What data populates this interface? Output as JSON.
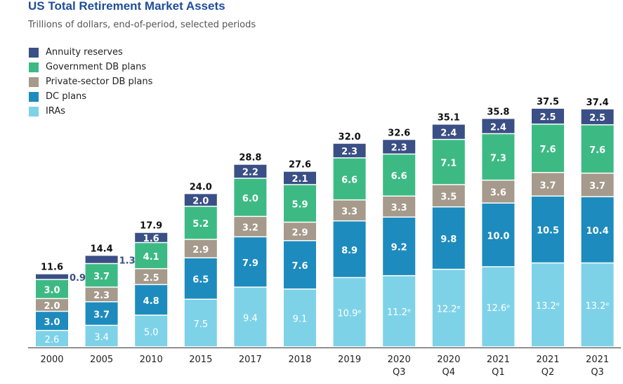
{
  "title": "US Total Retirement Market Assets",
  "subtitle": "Trillions of dollars, end-of-period, selected periods",
  "colors": {
    "annuity": "#3a4f85",
    "govdb": "#3dba84",
    "privdb": "#a59a8b",
    "dc": "#1d8bbd",
    "ira": "#7ed2e8",
    "total_text": "#111111",
    "axis": "#333333"
  },
  "legend": [
    {
      "label": "Annuity reserves",
      "key": "annuity"
    },
    {
      "label": "Government DB plans",
      "key": "govdb"
    },
    {
      "label": "Private-sector DB plans",
      "key": "privdb"
    },
    {
      "label": "DC plans",
      "key": "dc"
    },
    {
      "label": "IRAs",
      "key": "ira"
    }
  ],
  "chart_data": {
    "type": "bar",
    "stacked": true,
    "categories": [
      "2000",
      "2005",
      "2010",
      "2015",
      "2017",
      "2018",
      "2019",
      "2020 Q3",
      "2020 Q4",
      "2021 Q1",
      "2021 Q2",
      "2021 Q3"
    ],
    "category_lines": [
      [
        "2000"
      ],
      [
        "2005"
      ],
      [
        "2010"
      ],
      [
        "2015"
      ],
      [
        "2017"
      ],
      [
        "2018"
      ],
      [
        "2019"
      ],
      [
        "2020",
        "Q3"
      ],
      [
        "2020",
        "Q4"
      ],
      [
        "2021",
        "Q1"
      ],
      [
        "2021",
        "Q2"
      ],
      [
        "2021",
        "Q3"
      ]
    ],
    "series": [
      {
        "name": "IRAs",
        "key": "ira",
        "values": [
          2.6,
          3.4,
          5.0,
          7.5,
          9.4,
          9.1,
          10.9,
          11.2,
          12.2,
          12.6,
          13.2,
          13.2
        ],
        "labels": [
          "2.6",
          "3.4",
          "5.0",
          "7.5",
          "9.4",
          "9.1",
          "10.9ᵉ",
          "11.2ᵉ",
          "12.2ᵉ",
          "12.6ᵉ",
          "13.2ᵉ",
          "13.2ᵉ"
        ]
      },
      {
        "name": "DC plans",
        "key": "dc",
        "values": [
          3.0,
          3.7,
          4.8,
          6.5,
          7.9,
          7.6,
          8.9,
          9.2,
          9.8,
          10.0,
          10.5,
          10.4
        ],
        "labels": [
          "3.0",
          "3.7",
          "4.8",
          "6.5",
          "7.9",
          "7.6",
          "8.9",
          "9.2",
          "9.8",
          "10.0",
          "10.5",
          "10.4"
        ]
      },
      {
        "name": "Private-sector DB plans",
        "key": "privdb",
        "values": [
          2.0,
          2.3,
          2.5,
          2.9,
          3.2,
          2.9,
          3.3,
          3.3,
          3.5,
          3.6,
          3.7,
          3.7
        ],
        "labels": [
          "2.0",
          "2.3",
          "2.5",
          "2.9",
          "3.2",
          "2.9",
          "3.3",
          "3.3",
          "3.5",
          "3.6",
          "3.7",
          "3.7"
        ]
      },
      {
        "name": "Government DB plans",
        "key": "govdb",
        "values": [
          3.0,
          3.7,
          4.1,
          5.2,
          6.0,
          5.9,
          6.6,
          6.6,
          7.1,
          7.3,
          7.6,
          7.6
        ],
        "labels": [
          "3.0",
          "3.7",
          "4.1",
          "5.2",
          "6.0",
          "5.9",
          "6.6",
          "6.6",
          "7.1",
          "7.3",
          "7.6",
          "7.6"
        ]
      },
      {
        "name": "Annuity reserves",
        "key": "annuity",
        "values": [
          0.9,
          1.3,
          1.6,
          2.0,
          2.2,
          2.1,
          2.3,
          2.3,
          2.4,
          2.4,
          2.5,
          2.5
        ],
        "labels": [
          "0.9",
          "1.3",
          "1.6",
          "2.0",
          "2.2",
          "2.1",
          "2.3",
          "2.3",
          "2.4",
          "2.4",
          "2.5",
          "2.5"
        ]
      }
    ],
    "totals": [
      "11.6",
      "14.4",
      "17.9",
      "24.0",
      "28.8",
      "27.6",
      "32.0",
      "32.6",
      "35.1",
      "35.8",
      "37.5",
      "37.4"
    ],
    "ylim": [
      0,
      40
    ],
    "grid": false,
    "legend_position": "top-left"
  }
}
